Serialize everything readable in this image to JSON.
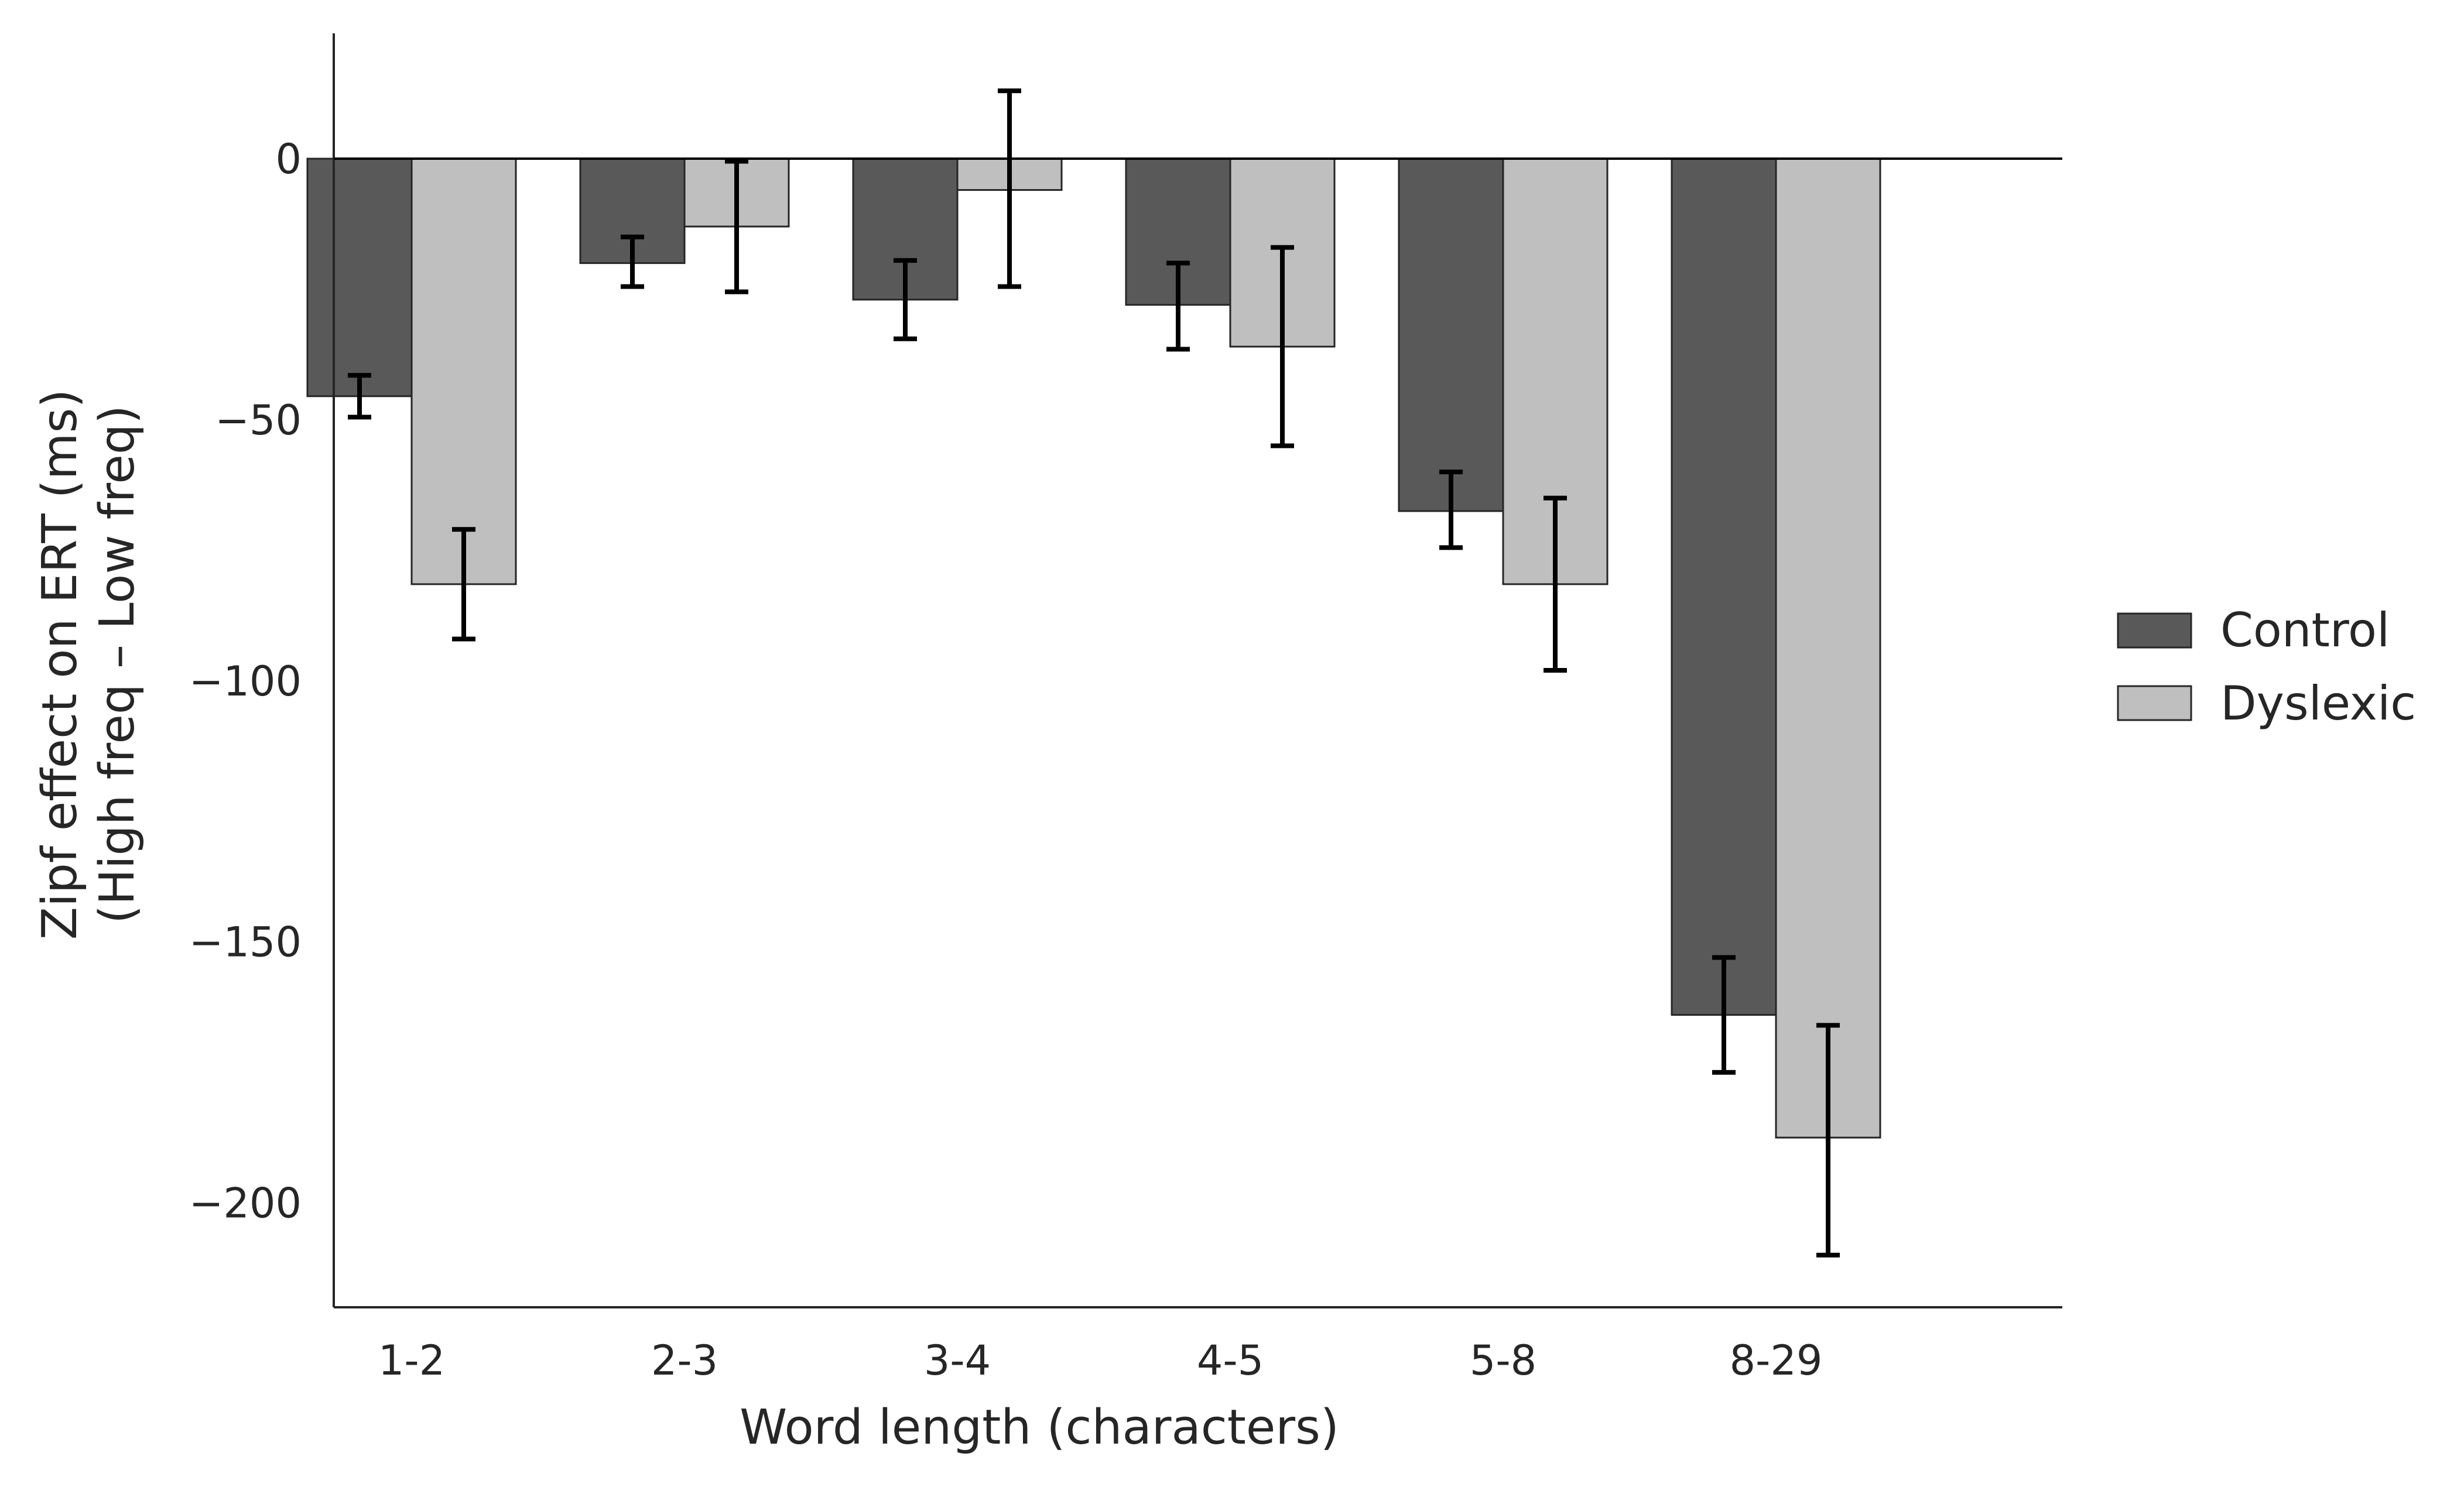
{
  "chart_data": {
    "type": "bar",
    "title": "",
    "xlabel": "Word length (characters)",
    "ylabel": "Zipf effect on ERT (ms)",
    "ylabel_line2": "(High freq – Low freq)",
    "categories": [
      "1-2",
      "2-3",
      "3-4",
      "4-5",
      "5-8",
      "8-29"
    ],
    "series": [
      {
        "name": "Control",
        "color": "#595959",
        "values": [
          -45.5,
          -20,
          -27,
          -28,
          -67.5,
          -164
        ],
        "error_low": [
          -49.5,
          -24.5,
          -34.5,
          -36.5,
          -74.5,
          -175
        ],
        "error_high": [
          -41.5,
          -15,
          -19.5,
          -20,
          -60,
          -153
        ]
      },
      {
        "name": "Dyslexic",
        "color": "#bfbfbf",
        "values": [
          -81.5,
          -13,
          -6,
          -36,
          -81.5,
          -187.5
        ],
        "error_low": [
          -92,
          -25.5,
          -24.5,
          -55,
          -98,
          -210
        ],
        "error_high": [
          -71,
          -0.5,
          13,
          -17,
          -65,
          -166
        ]
      }
    ],
    "ylim": [
      -220,
      24
    ],
    "yticks": [
      0,
      -50,
      -100,
      -150,
      -200
    ],
    "ytick_labels": [
      "0",
      "−50",
      "−100",
      "−150",
      "−200"
    ],
    "grid": false,
    "legend_position": "right"
  }
}
